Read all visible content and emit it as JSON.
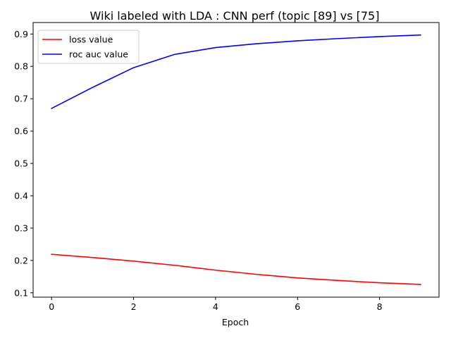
{
  "chart_data": {
    "type": "line",
    "title": "Wiki labeled with LDA : CNN perf (topic [89] vs [75]",
    "xlabel": "Epoch",
    "ylabel": "",
    "x": [
      0,
      1,
      2,
      3,
      4,
      5,
      6,
      7,
      8,
      9
    ],
    "xlim": [
      -0.45,
      9.45
    ],
    "ylim": [
      0.0865,
      0.9355
    ],
    "xticks": [
      0,
      2,
      4,
      6,
      8
    ],
    "yticks": [
      0.1,
      0.2,
      0.3,
      0.4,
      0.5,
      0.6,
      0.7,
      0.8,
      0.9
    ],
    "grid": false,
    "legend": "top-left",
    "series": [
      {
        "name": "loss value",
        "color": "#ff0000",
        "values": [
          0.219,
          0.209,
          0.198,
          0.185,
          0.17,
          0.157,
          0.146,
          0.138,
          0.131,
          0.126
        ]
      },
      {
        "name": "roc auc value",
        "color": "#0000ff",
        "values": [
          0.67,
          0.735,
          0.796,
          0.837,
          0.858,
          0.87,
          0.879,
          0.886,
          0.892,
          0.897
        ]
      }
    ]
  }
}
